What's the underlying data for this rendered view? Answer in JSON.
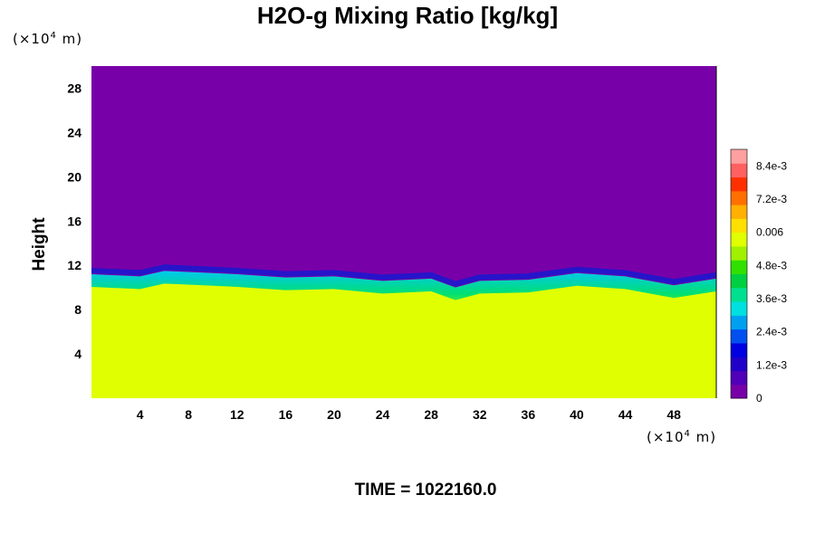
{
  "title": "H2O-g Mixing Ratio [kg/kg]",
  "footer": "TIME = 1022160.0",
  "axes": {
    "y_unit_prefix": "(×10",
    "y_unit_exp": "4",
    "y_unit_suffix": " m)",
    "x_unit_prefix": "(×10",
    "x_unit_exp": "4",
    "x_unit_suffix": " m)",
    "ylabel": "Height"
  },
  "chart_data": {
    "type": "heatmap",
    "title": "H2O-g Mixing Ratio [kg/kg]",
    "xlabel": "",
    "ylabel": "Height",
    "xlim": [
      0,
      51.5
    ],
    "ylim": [
      0,
      30
    ],
    "x_ticks": [
      4,
      8,
      12,
      16,
      20,
      24,
      28,
      32,
      36,
      40,
      44,
      48
    ],
    "y_ticks": [
      4,
      8,
      12,
      16,
      20,
      24,
      28
    ],
    "colorbar": {
      "range": [
        0,
        0.009
      ],
      "tick_values": [
        0,
        0.0012,
        0.0024,
        0.0036,
        0.0048,
        0.006,
        0.0072,
        0.0084
      ],
      "tick_labels": [
        "0",
        "1.2e-3",
        "2.4e-3",
        "3.6e-3",
        "4.8e-3",
        "0.006",
        "7.2e-3",
        "8.4e-3"
      ]
    },
    "field": {
      "upper_value": 0,
      "lower_value": 0.0062,
      "boundary_x": [
        0,
        4,
        6,
        8,
        12,
        16,
        20,
        24,
        28,
        30,
        32,
        36,
        40,
        44,
        48,
        51.5
      ],
      "boundary_height": [
        11.2,
        11.0,
        11.5,
        11.4,
        11.2,
        10.9,
        11.0,
        10.6,
        10.8,
        10.0,
        10.6,
        10.7,
        11.3,
        11.0,
        10.2,
        10.8
      ]
    },
    "colors": {
      "moist_layer": "#e0ff00",
      "dry_layer": "#7800a8",
      "colorbar": [
        "#7800a8",
        "#5000b8",
        "#2000c8",
        "#0000e0",
        "#0050f0",
        "#00a0f0",
        "#00e0e0",
        "#00e090",
        "#00d040",
        "#30e000",
        "#a0f000",
        "#e0ff00",
        "#ffe000",
        "#ffb000",
        "#ff7000",
        "#ff3000",
        "#ff6060",
        "#ffa0a0"
      ]
    }
  }
}
